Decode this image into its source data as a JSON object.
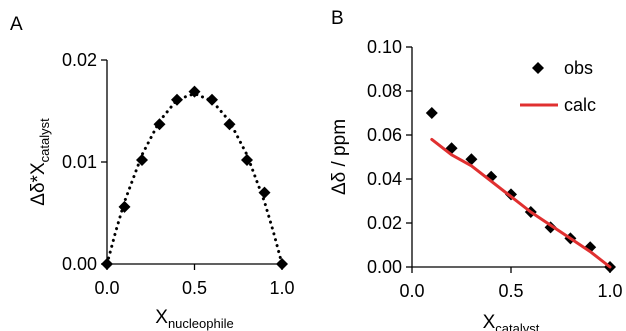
{
  "chart_data": [
    {
      "panel": "A",
      "type": "scatter",
      "xlabel": "X",
      "xlabel_sub": "nucleophile",
      "ylabel": "Δδ*X",
      "ylabel_sub": "catalyst",
      "xlim": [
        0,
        1.0
      ],
      "ylim": [
        0,
        0.02
      ],
      "xticks": [
        "0.0",
        "0.5",
        "1.0"
      ],
      "yticks": [
        "0.00",
        "0.01",
        "0.02"
      ],
      "grid": false,
      "series": [
        {
          "style": "markers",
          "x": [
            0.0,
            0.1,
            0.2,
            0.3,
            0.4,
            0.5,
            0.6,
            0.7,
            0.8,
            0.9,
            1.0
          ],
          "y": [
            0.0,
            0.0056,
            0.0102,
            0.0137,
            0.0161,
            0.0169,
            0.0161,
            0.0137,
            0.0102,
            0.007,
            0.0
          ]
        },
        {
          "style": "dotted-fit",
          "x": [
            0.0,
            0.05,
            0.1,
            0.2,
            0.3,
            0.4,
            0.5,
            0.6,
            0.7,
            0.8,
            0.9,
            0.95,
            1.0
          ],
          "y": [
            0.0,
            0.0032,
            0.0061,
            0.0107,
            0.014,
            0.0161,
            0.0167,
            0.016,
            0.014,
            0.0107,
            0.0061,
            0.0032,
            0.0
          ]
        }
      ]
    },
    {
      "panel": "B",
      "type": "scatter",
      "xlabel": "X",
      "xlabel_sub": "catalyst",
      "ylabel": "Δδ / ppm",
      "xlim": [
        0,
        1.0
      ],
      "ylim": [
        0,
        0.1
      ],
      "xticks": [
        "0.0",
        "0.5",
        "1.0"
      ],
      "yticks": [
        "0.00",
        "0.02",
        "0.04",
        "0.06",
        "0.08",
        "0.10"
      ],
      "grid": false,
      "legend_position": "top-right",
      "series": [
        {
          "name": "obs",
          "style": "markers",
          "color": "#000000",
          "x": [
            0.1,
            0.2,
            0.3,
            0.4,
            0.5,
            0.6,
            0.7,
            0.8,
            0.9,
            1.0
          ],
          "y": [
            0.07,
            0.054,
            0.049,
            0.041,
            0.033,
            0.025,
            0.018,
            0.013,
            0.009,
            0.0
          ]
        },
        {
          "name": "calc",
          "style": "line",
          "color": "#e03030",
          "x": [
            0.1,
            0.2,
            0.3,
            0.4,
            0.5,
            0.6,
            0.7,
            0.8,
            0.9,
            1.0
          ],
          "y": [
            0.058,
            0.051,
            0.046,
            0.039,
            0.032,
            0.025,
            0.019,
            0.013,
            0.007,
            0.0
          ]
        }
      ]
    }
  ]
}
